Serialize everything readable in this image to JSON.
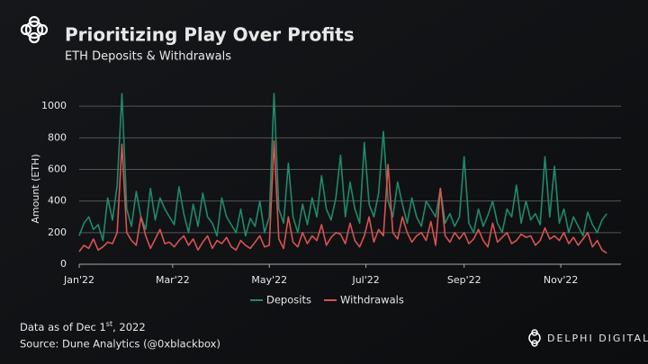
{
  "header": {
    "title": "Prioritizing Play Over Profits",
    "subtitle": "ETH Deposits & Withdrawals"
  },
  "footer": {
    "note_prefix": "Data as of Dec 1",
    "note_sup": "st",
    "note_suffix": ", 2022",
    "source": "Source: Dune Analytics (@0xblackbox)",
    "brand": "DELPHI DIGITAL"
  },
  "chart_data": {
    "type": "line",
    "y_label": "Amount (ETH)",
    "x": [
      1,
      4,
      7,
      10,
      13,
      16,
      19,
      22,
      25,
      28,
      31,
      34,
      37,
      40,
      43,
      46,
      49,
      52,
      55,
      58,
      61,
      64,
      67,
      70,
      73,
      76,
      79,
      82,
      85,
      88,
      91,
      94,
      97,
      100,
      103,
      106,
      109,
      112,
      115,
      118,
      121,
      124,
      127,
      130,
      133,
      136,
      139,
      142,
      145,
      148,
      151,
      154,
      157,
      160,
      163,
      166,
      169,
      172,
      175,
      178,
      181,
      184,
      187,
      190,
      193,
      196,
      199,
      202,
      205,
      208,
      211,
      214,
      217,
      220,
      223,
      226,
      229,
      232,
      235,
      238,
      241,
      244,
      247,
      250,
      253,
      256,
      259,
      262,
      265,
      268,
      271,
      274,
      277,
      280,
      283,
      286,
      289,
      292,
      295,
      298,
      301,
      304,
      307,
      310,
      313,
      316,
      319,
      322,
      325,
      328,
      331,
      334
    ],
    "series": [
      {
        "name": "Deposits",
        "color": "#1f8a6a",
        "values": [
          180,
          260,
          300,
          220,
          250,
          150,
          420,
          280,
          500,
          1080,
          350,
          240,
          460,
          300,
          220,
          480,
          280,
          420,
          350,
          300,
          250,
          490,
          320,
          200,
          380,
          240,
          450,
          300,
          260,
          180,
          420,
          300,
          250,
          200,
          350,
          180,
          290,
          240,
          400,
          200,
          300,
          1080,
          350,
          260,
          640,
          300,
          200,
          380,
          250,
          420,
          300,
          560,
          350,
          280,
          420,
          690,
          300,
          520,
          350,
          260,
          770,
          380,
          300,
          450,
          840,
          400,
          300,
          520,
          380,
          260,
          420,
          300,
          240,
          400,
          350,
          300,
          480,
          260,
          320,
          240,
          300,
          680,
          260,
          200,
          350,
          240,
          310,
          400,
          260,
          200,
          350,
          300,
          500,
          260,
          400,
          280,
          320,
          250,
          680,
          300,
          620,
          260,
          350,
          200,
          300,
          240,
          180,
          330,
          250,
          200,
          280,
          320
        ]
      },
      {
        "name": "Withdrawals",
        "color": "#d9534f",
        "values": [
          80,
          120,
          100,
          160,
          90,
          110,
          140,
          130,
          200,
          760,
          200,
          150,
          120,
          300,
          180,
          100,
          160,
          220,
          130,
          140,
          110,
          150,
          180,
          120,
          160,
          90,
          140,
          180,
          100,
          150,
          130,
          170,
          110,
          90,
          150,
          120,
          100,
          140,
          180,
          110,
          120,
          780,
          160,
          100,
          300,
          140,
          110,
          200,
          130,
          180,
          150,
          250,
          120,
          170,
          200,
          190,
          130,
          260,
          150,
          110,
          180,
          300,
          140,
          220,
          180,
          630,
          200,
          160,
          300,
          200,
          140,
          180,
          200,
          150,
          270,
          120,
          480,
          180,
          140,
          200,
          160,
          200,
          130,
          160,
          220,
          150,
          110,
          260,
          140,
          170,
          200,
          130,
          150,
          190,
          170,
          180,
          120,
          150,
          230,
          160,
          180,
          150,
          200,
          130,
          170,
          120,
          160,
          200,
          110,
          150,
          90,
          70
        ]
      }
    ],
    "xlim": [
      1,
      343
    ],
    "xticks": [
      {
        "value": 1,
        "label": "Jan'22"
      },
      {
        "value": 60,
        "label": "Mar'22"
      },
      {
        "value": 121,
        "label": "May'22"
      },
      {
        "value": 182,
        "label": "Jul'22"
      },
      {
        "value": 244,
        "label": "Sep'22"
      },
      {
        "value": 305,
        "label": "Nov'22"
      }
    ],
    "ylim": [
      0,
      1100
    ],
    "yticks": [
      0,
      200,
      400,
      600,
      800,
      1000
    ],
    "grid": true
  }
}
